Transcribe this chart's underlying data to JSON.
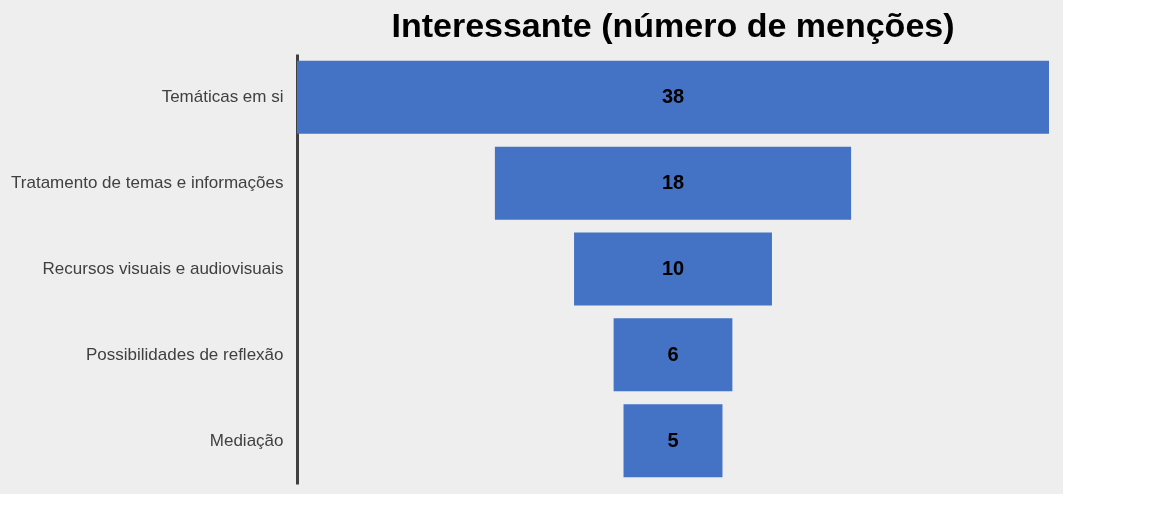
{
  "chart_data": {
    "type": "other",
    "title": "Interessante (número de menções)",
    "categories": [
      "Temáticas em si",
      "Tratamento de temas e informações",
      "Recursos visuais e audiovisuais",
      "Possibilidades de reflexão",
      "Mediação"
    ],
    "values": [
      38,
      18,
      10,
      6,
      5
    ],
    "color": "#4472c4",
    "data_labels": true
  }
}
